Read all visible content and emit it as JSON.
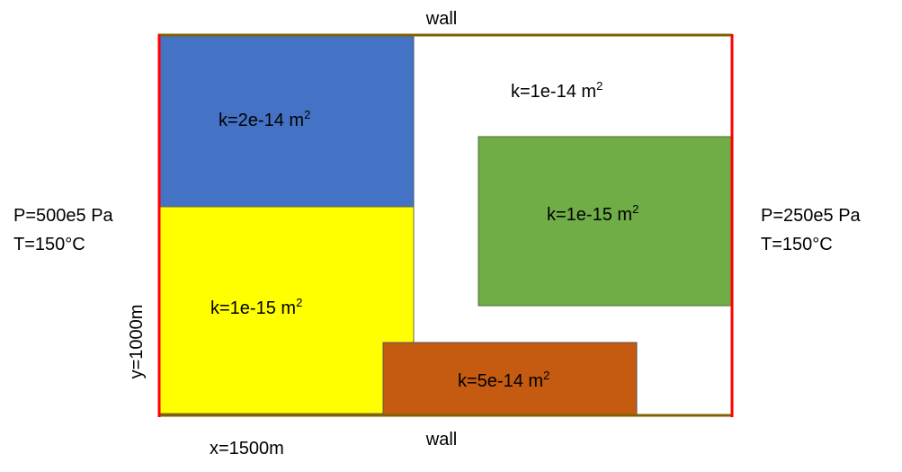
{
  "labels": {
    "wall_top": "wall",
    "wall_bottom": "wall",
    "x_dimension": "x=1500m",
    "y_dimension": "y=1000m"
  },
  "boundaries": {
    "left": {
      "pressure": "P=500e5 Pa",
      "temperature": "T=150°C"
    },
    "right": {
      "pressure": "P=250e5 Pa",
      "temperature": "T=150°C"
    }
  },
  "colors": {
    "inlet_outlet_boundary": "#ff0000",
    "wall_boundary": "#806000",
    "background_matrix": "#ffffff"
  },
  "regions": {
    "background": {
      "perm": "k=1e-14 m",
      "exp": "2"
    },
    "blue": {
      "perm": "k=2e-14 m",
      "exp": "2",
      "color": "#4472c4"
    },
    "yellow": {
      "perm": "k=1e-15 m",
      "exp": "2",
      "color": "#ffff00"
    },
    "green": {
      "perm": "k=1e-15 m",
      "exp": "2",
      "color": "#70ad47"
    },
    "orange": {
      "perm": "k=5e-14 m",
      "exp": "2",
      "color": "#c55a11"
    }
  }
}
